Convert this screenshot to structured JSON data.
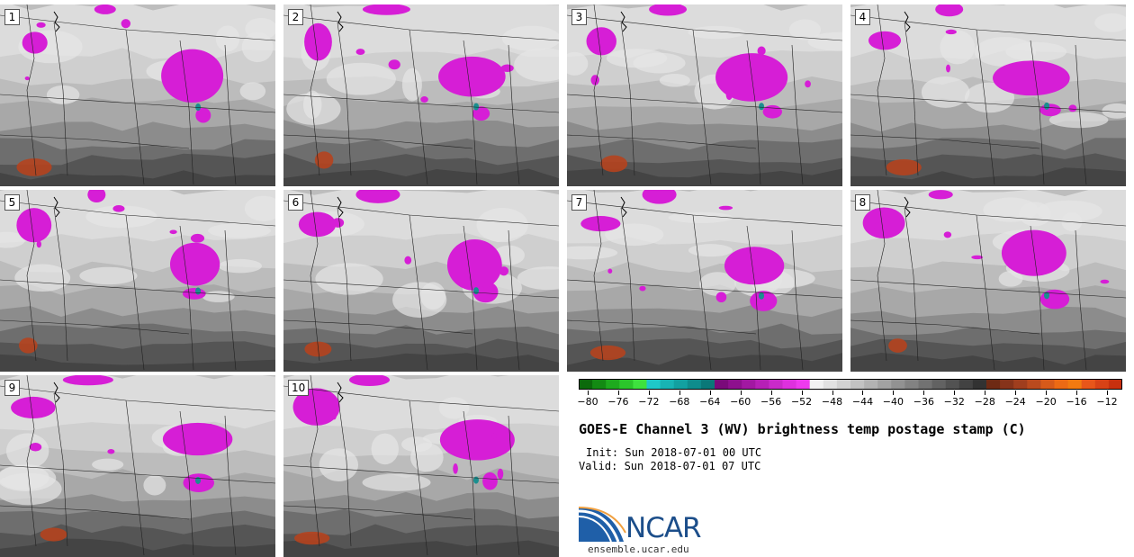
{
  "title": "GOES-E Channel 3 (WV) brightness temp postage stamp (C)",
  "init_text": "Init: Sun 2018-07-01 00 UTC",
  "valid_text": "Valid: Sun 2018-07-01 07 UTC",
  "logo_text": "NCAR",
  "site_text": "ensemble.ucar.edu",
  "members": [
    {
      "label": "1"
    },
    {
      "label": "2"
    },
    {
      "label": "3"
    },
    {
      "label": "4"
    },
    {
      "label": "5"
    },
    {
      "label": "6"
    },
    {
      "label": "7"
    },
    {
      "label": "8"
    },
    {
      "label": "9"
    },
    {
      "label": "10"
    }
  ],
  "colorbar": {
    "tick_labels": [
      "−80",
      "−76",
      "−72",
      "−68",
      "−64",
      "−60",
      "−56",
      "−52",
      "−48",
      "−44",
      "−40",
      "−36",
      "−32",
      "−28",
      "−24",
      "−20",
      "−16",
      "−12"
    ],
    "colors": [
      "#0b6a0b",
      "#138a13",
      "#1eaa1e",
      "#2bc62b",
      "#3ee23e",
      "#1ec8c8",
      "#18b4b4",
      "#12a0a0",
      "#0e8c8c",
      "#0a7878",
      "#7a0a7a",
      "#8e108e",
      "#a218a2",
      "#b620b6",
      "#ca2aca",
      "#de30de",
      "#ee3aee",
      "#f2f2f2",
      "#e2e2e2",
      "#d2d2d2",
      "#c2c2c2",
      "#b2b2b2",
      "#a2a2a2",
      "#929292",
      "#828282",
      "#727272",
      "#626262",
      "#525252",
      "#424242",
      "#323232",
      "#6e2a14",
      "#86331a",
      "#a03e1e",
      "#ba4a1e",
      "#d65a1a",
      "#ec6a14",
      "#f27a10",
      "#e8561a",
      "#d84216",
      "#c8300e"
    ]
  },
  "colors": {
    "moist": "#d61ed6",
    "teal": "#1a8f8f",
    "warm": "#b5431e",
    "land_lines": "#202020"
  }
}
